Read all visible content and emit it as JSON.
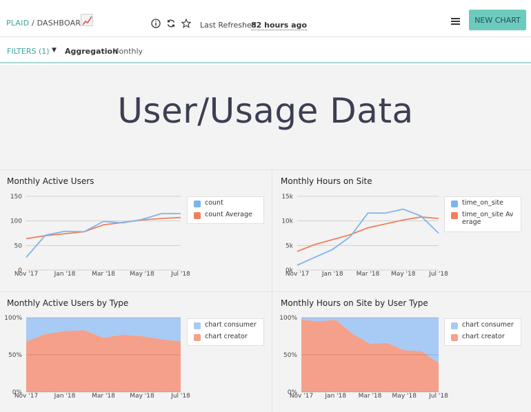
{
  "header": {
    "org": "PLAID",
    "separator": "/",
    "page": "DASHBOARD",
    "last_refreshed_label": "Last Refreshed",
    "last_refreshed_value": "82 hours ago",
    "new_chart_label": "NEW CHART",
    "icons": [
      "info-icon",
      "refresh-icon",
      "star-icon",
      "menu-icon"
    ]
  },
  "filters": {
    "label": "FILTERS (1)",
    "aggregation_label": "Aggregation",
    "aggregation_value": "Monthly"
  },
  "main": {
    "title": "User/Usage Data"
  },
  "colors": {
    "blue": "#7cb5ec",
    "orange": "#f07f5d",
    "accent": "#6dcabf",
    "area_blue": "#a7cbf5",
    "area_orange": "#f4a08b"
  },
  "chart_data": [
    {
      "id": "mau",
      "type": "line",
      "title": "Monthly Active Users",
      "x_ticks": [
        "Nov '17",
        "Jan '18",
        "Mar '18",
        "May '18",
        "Jul '18"
      ],
      "y_ticks": [
        "0",
        "50",
        "100",
        "150"
      ],
      "ylim": [
        0,
        150
      ],
      "x": [
        "Nov '17",
        "Dec '17",
        "Jan '18",
        "Feb '18",
        "Mar '18",
        "Apr '18",
        "May '18",
        "Jun '18",
        "Jul '18"
      ],
      "series": [
        {
          "name": "count",
          "color": "#7cb5ec",
          "values": [
            26,
            71,
            79,
            78,
            99,
            96,
            103,
            115,
            115
          ]
        },
        {
          "name": "count Average",
          "color": "#f07f5d",
          "values": [
            64,
            70,
            74,
            78,
            92,
            97,
            102,
            105,
            107
          ]
        }
      ],
      "legend_position": "right"
    },
    {
      "id": "hours",
      "type": "line",
      "title": "Monthly Hours on Site",
      "x_ticks": [
        "Nov '17",
        "Jan '18",
        "Mar '18",
        "May '18",
        "Jul '18"
      ],
      "y_ticks": [
        "0k",
        "5k",
        "10k",
        "15k"
      ],
      "ylim": [
        0,
        15000
      ],
      "x": [
        "Nov '17",
        "Dec '17",
        "Jan '18",
        "Feb '18",
        "Mar '18",
        "Apr '18",
        "May '18",
        "Jun '18",
        "Jul '18"
      ],
      "series": [
        {
          "name": "time_on_site",
          "color": "#7cb5ec",
          "values": [
            1000,
            2600,
            4200,
            6800,
            11600,
            11600,
            12400,
            11000,
            7500
          ]
        },
        {
          "name": "time_on_site Average",
          "color": "#f07f5d",
          "values": [
            3800,
            5200,
            6200,
            7200,
            8600,
            9400,
            10200,
            10800,
            10500
          ]
        }
      ],
      "legend_position": "right"
    },
    {
      "id": "mau_type",
      "type": "area",
      "title": "Monthly Active Users by Type",
      "x_ticks": [
        "Nov '17",
        "Jan '18",
        "Mar '18",
        "May '18",
        "Jul '18"
      ],
      "y_ticks": [
        "0%",
        "50%",
        "100%"
      ],
      "ylim": [
        0,
        100
      ],
      "x": [
        "Nov '17",
        "Dec '17",
        "Jan '18",
        "Feb '18",
        "Mar '18",
        "Apr '18",
        "May '18",
        "Jun '18",
        "Jul '18"
      ],
      "stacked_percent": true,
      "series": [
        {
          "name": "chart consumer",
          "color": "#a7cbf5",
          "values": [
            32,
            22,
            18,
            17,
            27,
            23,
            25,
            29,
            32
          ]
        },
        {
          "name": "chart creator",
          "color": "#f4a08b",
          "values": [
            68,
            78,
            82,
            83,
            73,
            77,
            75,
            71,
            68
          ]
        }
      ],
      "legend_position": "right"
    },
    {
      "id": "hours_type",
      "type": "area",
      "title": "Monthly Hours on Site by User Type",
      "x_ticks": [
        "Nov '17",
        "Jan '18",
        "Mar '18",
        "May '18",
        "Jul '18"
      ],
      "y_ticks": [
        "0%",
        "50%",
        "100%"
      ],
      "ylim": [
        0,
        100
      ],
      "x": [
        "Nov '17",
        "Dec '17",
        "Jan '18",
        "Feb '18",
        "Mar '18",
        "Apr '18",
        "May '18",
        "Jun '18",
        "Jul '18"
      ],
      "stacked_percent": true,
      "series": [
        {
          "name": "chart consumer",
          "color": "#a7cbf5",
          "values": [
            3,
            5,
            3,
            22,
            35,
            34,
            44,
            45,
            61
          ]
        },
        {
          "name": "chart creator",
          "color": "#f4a08b",
          "values": [
            97,
            95,
            97,
            78,
            65,
            66,
            56,
            55,
            39
          ]
        }
      ],
      "legend_position": "right"
    }
  ]
}
